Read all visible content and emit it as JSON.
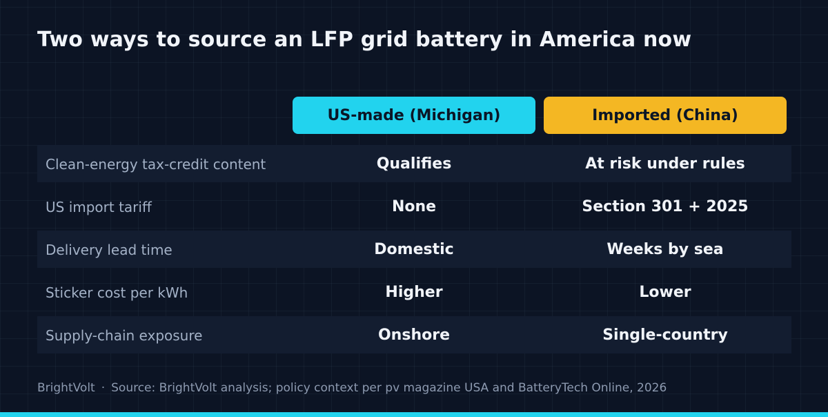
{
  "title": "Two ways to source an LFP grid battery in America now",
  "columns": {
    "us": "US-made (Michigan)",
    "cn": "Imported (China)"
  },
  "rows": [
    {
      "label": "Clean-energy tax-credit content",
      "us": "Qualifies",
      "cn": "At risk under rules"
    },
    {
      "label": "US import tariff",
      "us": "None",
      "cn": "Section 301 + 2025"
    },
    {
      "label": "Delivery lead time",
      "us": "Domestic",
      "cn": "Weeks by sea"
    },
    {
      "label": "Sticker cost per kWh",
      "us": "Higher",
      "cn": "Lower"
    },
    {
      "label": "Supply-chain exposure",
      "us": "Onshore",
      "cn": "Single-country"
    }
  ],
  "footer": {
    "brand": "BrightVolt",
    "separator": "·",
    "source": "Source: BrightVolt analysis; policy context per pv magazine USA and BatteryTech Online, 2026"
  },
  "colors": {
    "background": "#0c1424",
    "us_accent": "#22d3ee",
    "cn_accent": "#f4b723",
    "row_shade": "#131d30"
  }
}
